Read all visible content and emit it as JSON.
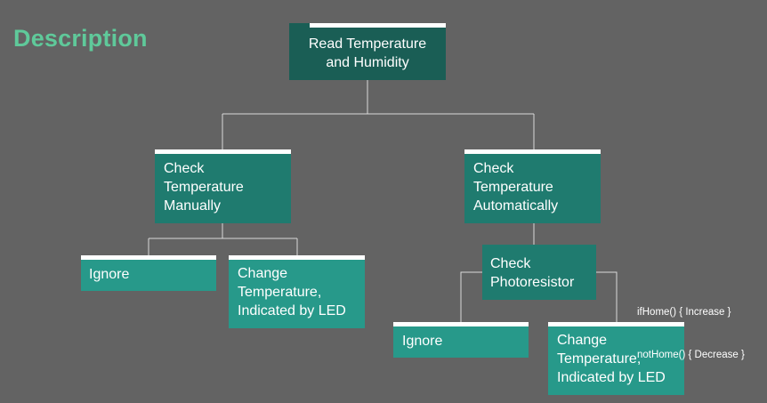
{
  "title": "Description",
  "nodes": {
    "root": "Read Temperature\nand Humidity",
    "manual": "Check\nTemperature\nManually",
    "auto": "Check\nTemperature\nAutomatically",
    "ignore_left": "Ignore",
    "change_left": "Change\nTemperature,\nIndicated by LED",
    "photoresistor": "Check\nPhotoresistor",
    "ignore_right": "Ignore",
    "change_right": "Change\nTemperature,\nIndicated by LED"
  },
  "note": {
    "line1": "ifHome() { Increase }",
    "line2": "notHome() { Decrease }"
  },
  "colors": {
    "background": "#636363",
    "title": "#5fc99a",
    "node_dark": "#1a5e55",
    "node_mid": "#1f7b6f",
    "node_light": "#27998a",
    "connector": "#d9d9d9"
  }
}
